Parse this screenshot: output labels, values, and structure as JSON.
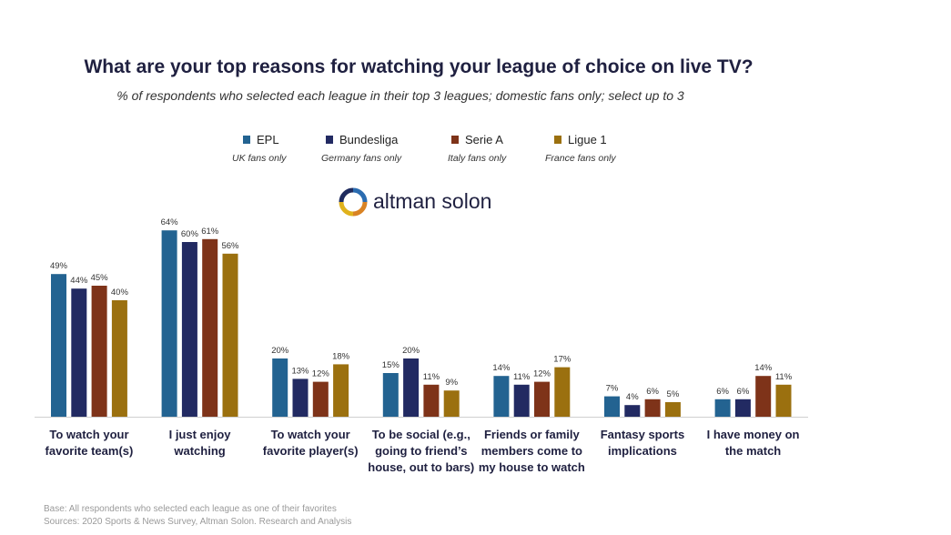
{
  "chart_data": {
    "type": "bar",
    "title": "What are your top reasons for watching your league of choice on live TV?",
    "subtitle": "% of respondents who selected each league in their top 3 leagues; domestic fans only; select up to 3",
    "categories": [
      [
        "To watch your",
        "favorite team(s)"
      ],
      [
        "I just enjoy",
        "watching"
      ],
      [
        "To watch your",
        "favorite player(s)"
      ],
      [
        "To be social (e.g.,",
        "going to friend’s",
        "house, out to bars)"
      ],
      [
        "Friends or family",
        "members come to",
        "my house to watch"
      ],
      [
        "Fantasy sports",
        "implications"
      ],
      [
        "I have money on",
        "the match"
      ]
    ],
    "series": [
      {
        "name": "EPL",
        "note": "UK fans only",
        "color": "#236391",
        "values": [
          49,
          64,
          20,
          15,
          14,
          7,
          6
        ]
      },
      {
        "name": "Bundesliga",
        "note": "Germany fans only",
        "color": "#222a62",
        "values": [
          44,
          60,
          13,
          20,
          11,
          4,
          6
        ]
      },
      {
        "name": "Serie A",
        "note": "Italy fans only",
        "color": "#7e3319",
        "values": [
          45,
          61,
          12,
          11,
          12,
          6,
          14
        ]
      },
      {
        "name": "Ligue 1",
        "note": "France fans only",
        "color": "#9b700f",
        "values": [
          40,
          56,
          18,
          9,
          17,
          5,
          11
        ]
      }
    ],
    "value_suffix": "%",
    "ylim": [
      0,
      100
    ],
    "grid": false
  },
  "logo": {
    "text": "altman solon",
    "icon": "altman-solon-logo-icon"
  },
  "footer": {
    "base": "Base: All respondents who selected each league as one of their favorites",
    "sources": "Sources: 2020 Sports & News Survey,  Altman Solon. Research and Analysis"
  }
}
